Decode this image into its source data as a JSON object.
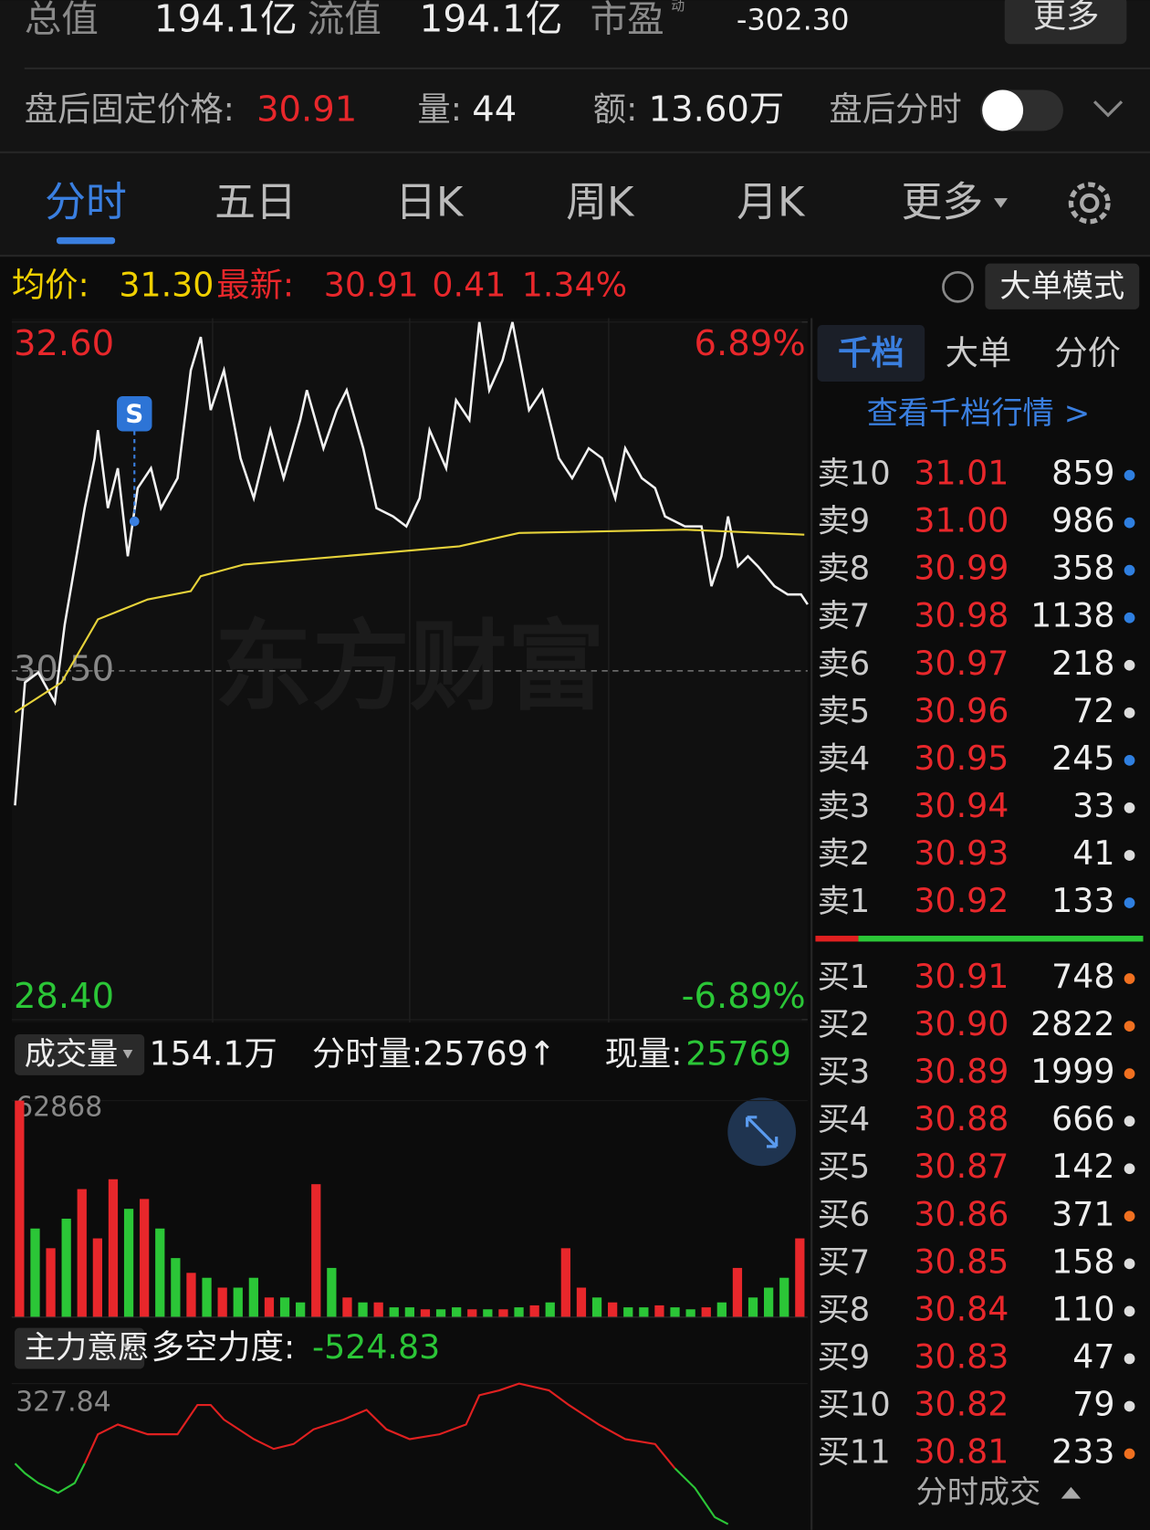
{
  "header": {
    "items": [
      {
        "label": "总值",
        "value": "194.1亿"
      },
      {
        "label": "流值",
        "value": "194.1亿"
      },
      {
        "label": "市盈",
        "sup": "动",
        "value": "-302.30"
      }
    ],
    "more": "更多"
  },
  "after_hours": {
    "price_label": "盘后固定价格:",
    "price": "30.91",
    "volume_label": "量:",
    "volume": "44",
    "amount_label": "额:",
    "amount": "13.60万",
    "toggle_label": "盘后分时"
  },
  "tabs": [
    "分时",
    "五日",
    "日K",
    "周K",
    "月K",
    "更多"
  ],
  "quote": {
    "avg_label": "均价:",
    "avg": "31.30",
    "last_label": "最新:",
    "last": "30.91",
    "change": "0.41",
    "change_pct": "1.34%",
    "mode_button": "大单模式"
  },
  "watermark": "东方财富",
  "chart_data": [
    {
      "type": "line",
      "xlim": [
        0,
        240
      ],
      "ylim": [
        28.4,
        32.6
      ],
      "yticks": [
        {
          "value": 32.6,
          "label": "32.60"
        },
        {
          "value": 30.5,
          "label": "30.50"
        },
        {
          "value": 28.4,
          "label": "28.40"
        }
      ],
      "y2lim": [
        -6.89,
        6.89
      ],
      "y2ticks": [
        {
          "value": 6.89,
          "label": "6.89%"
        },
        {
          "value": -6.89,
          "label": "-6.89%"
        }
      ],
      "series": [
        {
          "color": "#f2f2f2",
          "x": [
            1,
            4,
            8,
            13,
            16,
            19,
            22,
            25,
            26,
            29,
            32,
            35,
            38,
            42,
            45,
            50,
            54,
            57,
            60,
            64,
            69,
            73,
            78,
            82,
            87,
            89,
            94,
            98,
            101,
            106,
            110,
            115,
            119,
            123,
            126,
            131,
            134,
            138,
            141,
            144,
            148,
            151,
            156,
            160,
            165,
            169,
            174,
            178,
            182,
            185,
            190,
            194,
            197,
            203,
            208,
            211,
            214,
            216,
            219,
            222,
            225,
            230,
            234,
            238,
            240
          ],
          "values": [
            29.69,
            30.43,
            30.49,
            30.31,
            30.78,
            31.13,
            31.48,
            31.78,
            31.95,
            31.48,
            31.72,
            31.19,
            31.6,
            31.72,
            31.48,
            31.66,
            32.31,
            32.51,
            32.07,
            32.31,
            31.78,
            31.54,
            31.95,
            31.66,
            32.01,
            32.19,
            31.84,
            32.07,
            32.19,
            31.84,
            31.48,
            31.43,
            31.37,
            31.54,
            31.95,
            31.72,
            32.13,
            32.01,
            32.6,
            32.19,
            32.37,
            32.6,
            32.07,
            32.19,
            31.78,
            31.66,
            31.84,
            31.78,
            31.54,
            31.84,
            31.66,
            31.6,
            31.43,
            31.37,
            31.37,
            31.01,
            31.19,
            31.43,
            31.13,
            31.19,
            31.13,
            31.01,
            30.96,
            30.96,
            30.9
          ]
        },
        {
          "color": "#e6d23a",
          "x": [
            1,
            15,
            26,
            41,
            54,
            57,
            70,
            100,
            135,
            153,
            203,
            239
          ],
          "values": [
            30.25,
            30.43,
            30.81,
            30.93,
            30.98,
            31.07,
            31.14,
            31.19,
            31.25,
            31.33,
            31.35,
            31.32
          ]
        }
      ],
      "annotations": [
        {
          "text": "S",
          "x": 37,
          "y": 31.4
        }
      ]
    },
    {
      "type": "bar",
      "title": "成交量",
      "total": "154.1万",
      "period_volume": "分时量:25769↑",
      "current_label": "现量:",
      "current": "25769",
      "ylim": [
        0,
        62868
      ],
      "yticks": [
        62868
      ],
      "values": [
        62868,
        25740,
        20020,
        28600,
        37180,
        22880,
        40040,
        31460,
        34320,
        25740,
        17160,
        12870,
        11440,
        8580,
        8580,
        11440,
        5720,
        5720,
        4290,
        38610,
        14300,
        5720,
        4290,
        4290,
        2860,
        2860,
        2288,
        2288,
        2860,
        2288,
        2288,
        2288,
        2860,
        3432,
        4290,
        20020,
        8580,
        5720,
        4290,
        2860,
        2860,
        3432,
        2860,
        2288,
        2860,
        4290,
        14300,
        5720,
        8580,
        11440,
        22880
      ],
      "colors": [
        "#e8272b",
        "#2bc637",
        "#e8272b",
        "#2bc637",
        "#e8272b",
        "#e8272b",
        "#e8272b",
        "#2bc637",
        "#e8272b",
        "#2bc637",
        "#2bc637",
        "#e8272b",
        "#2bc637",
        "#e8272b",
        "#2bc637",
        "#2bc637",
        "#e8272b",
        "#2bc637",
        "#2bc637",
        "#e8272b",
        "#2bc637",
        "#e8272b",
        "#2bc637",
        "#e8272b",
        "#2bc637",
        "#2bc637",
        "#e8272b",
        "#2bc637",
        "#2bc637",
        "#e8272b",
        "#2bc637",
        "#e8272b",
        "#2bc637",
        "#e8272b",
        "#2bc637",
        "#e8272b",
        "#e8272b",
        "#2bc637",
        "#e8272b",
        "#2bc637",
        "#2bc637",
        "#e8272b",
        "#2bc637",
        "#2bc637",
        "#e8272b",
        "#2bc637",
        "#e8272b",
        "#2bc637",
        "#2bc637",
        "#2bc637",
        "#e8272b"
      ]
    },
    {
      "type": "line",
      "title": "主力意愿",
      "measure_label": "多空力度:",
      "measure": "-524.83",
      "xlim": [
        0,
        240
      ],
      "ylim": [
        -560,
        327.84
      ],
      "yticks": [
        327.84
      ],
      "x": [
        1,
        4,
        8,
        14,
        19,
        22,
        26,
        32,
        41,
        50,
        56,
        60,
        64,
        73,
        79,
        85,
        91,
        100,
        107,
        113,
        120,
        129,
        137,
        141,
        147,
        153,
        162,
        168,
        177,
        185,
        194,
        200,
        206,
        212,
        216
      ],
      "series": [
        {
          "color": "#e02020",
          "values": [
            null,
            null,
            null,
            null,
            null,
            -157.5,
            20.1,
            79.2,
            20.1,
            20.1,
            197.6,
            197.6,
            108.8,
            -9.5,
            -68.7,
            -39.1,
            49.6,
            108.8,
            168.0,
            49.6,
            -9.5,
            20.1,
            79.2,
            256.8,
            286.4,
            327.84,
            286.4,
            197.6,
            79.2,
            -9.5,
            -39.1,
            -187.1,
            null,
            null,
            null
          ]
        },
        {
          "color": "#2bc637",
          "values": [
            -157.5,
            -216.7,
            -275.9,
            -335.1,
            -275.9,
            -157.5,
            null,
            null,
            null,
            null,
            null,
            null,
            null,
            null,
            null,
            null,
            null,
            null,
            null,
            null,
            null,
            null,
            null,
            null,
            null,
            null,
            null,
            null,
            null,
            null,
            null,
            -187.1,
            -305.5,
            -483.1,
            -524.83
          ]
        }
      ]
    }
  ],
  "order_book": {
    "tabs": [
      "千档",
      "大单",
      "分价"
    ],
    "link": "查看千档行情 >",
    "asks": [
      {
        "label": "卖10",
        "price": "31.01",
        "volume": "859",
        "dot": "#2f7fe0"
      },
      {
        "label": "卖9",
        "price": "31.00",
        "volume": "986",
        "dot": "#2f7fe0"
      },
      {
        "label": "卖8",
        "price": "30.99",
        "volume": "358",
        "dot": "#2f7fe0"
      },
      {
        "label": "卖7",
        "price": "30.98",
        "volume": "1138",
        "dot": "#2f7fe0"
      },
      {
        "label": "卖6",
        "price": "30.97",
        "volume": "218",
        "dot": "#dddddd"
      },
      {
        "label": "卖5",
        "price": "30.96",
        "volume": "72",
        "dot": "#dddddd"
      },
      {
        "label": "卖4",
        "price": "30.95",
        "volume": "245",
        "dot": "#2f7fe0"
      },
      {
        "label": "卖3",
        "price": "30.94",
        "volume": "33",
        "dot": "#dddddd"
      },
      {
        "label": "卖2",
        "price": "30.93",
        "volume": "41",
        "dot": "#dddddd"
      },
      {
        "label": "卖1",
        "price": "30.92",
        "volume": "133",
        "dot": "#2f7fe0"
      }
    ],
    "bids": [
      {
        "label": "买1",
        "price": "30.91",
        "volume": "748",
        "dot": "#f07020"
      },
      {
        "label": "买2",
        "price": "30.90",
        "volume": "2822",
        "dot": "#f07020"
      },
      {
        "label": "买3",
        "price": "30.89",
        "volume": "1999",
        "dot": "#f07020"
      },
      {
        "label": "买4",
        "price": "30.88",
        "volume": "666",
        "dot": "#dddddd"
      },
      {
        "label": "买5",
        "price": "30.87",
        "volume": "142",
        "dot": "#dddddd"
      },
      {
        "label": "买6",
        "price": "30.86",
        "volume": "371",
        "dot": "#f07020"
      },
      {
        "label": "买7",
        "price": "30.85",
        "volume": "158",
        "dot": "#dddddd"
      },
      {
        "label": "买8",
        "price": "30.84",
        "volume": "110",
        "dot": "#dddddd"
      },
      {
        "label": "买9",
        "price": "30.83",
        "volume": "47",
        "dot": "#dddddd"
      },
      {
        "label": "买10",
        "price": "30.82",
        "volume": "79",
        "dot": "#dddddd"
      },
      {
        "label": "买11",
        "price": "30.81",
        "volume": "233",
        "dot": "#f07020"
      }
    ],
    "footer": "分时成交"
  }
}
